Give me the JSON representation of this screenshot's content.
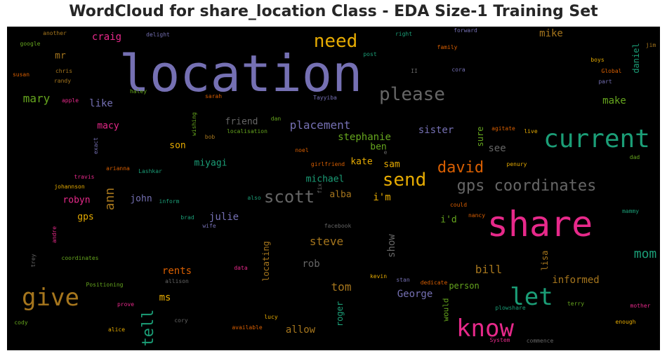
{
  "title": "WordCloud for share_location Class - EDA Size-1 Training Set",
  "palette": {
    "background": "#000000",
    "purple": "#7570b3",
    "green": "#1b9e77",
    "pink": "#e7298a",
    "orange": "#d95f02",
    "gold": "#e6ab02",
    "brown": "#a6761d",
    "lime": "#66a61e",
    "grey": "#666666"
  },
  "words": [
    {
      "text": "location",
      "color": "#7570b3"
    },
    {
      "text": "share",
      "color": "#e7298a"
    },
    {
      "text": "current",
      "color": "#1b9e77"
    },
    {
      "text": "please",
      "color": "#666666"
    },
    {
      "text": "need",
      "color": "#e6ab02"
    },
    {
      "text": "give",
      "color": "#a6761d"
    },
    {
      "text": "know",
      "color": "#e7298a"
    },
    {
      "text": "let",
      "color": "#1b9e77"
    },
    {
      "text": "send",
      "color": "#e6ab02"
    },
    {
      "text": "gps coordinates",
      "color": "#666666"
    },
    {
      "text": "scott",
      "color": "#666666"
    },
    {
      "text": "david",
      "color": "#d95f02"
    },
    {
      "text": "tell",
      "color": "#1b9e77"
    },
    {
      "text": "ann",
      "color": "#a6761d"
    },
    {
      "text": "mom",
      "color": "#1b9e77"
    },
    {
      "text": "placement",
      "color": "#7570b3"
    },
    {
      "text": "mary",
      "color": "#66a61e"
    },
    {
      "text": "craig",
      "color": "#e7298a"
    },
    {
      "text": "mike",
      "color": "#a6761d"
    },
    {
      "text": "like",
      "color": "#7570b3"
    },
    {
      "text": "make",
      "color": "#66a61e"
    },
    {
      "text": "sister",
      "color": "#7570b3"
    },
    {
      "text": "stephanie",
      "color": "#66a61e"
    },
    {
      "text": "see",
      "color": "#666666"
    },
    {
      "text": "show",
      "color": "#666666"
    },
    {
      "text": "steve",
      "color": "#a6761d"
    },
    {
      "text": "bill",
      "color": "#a6761d"
    },
    {
      "text": "tom",
      "color": "#a6761d"
    },
    {
      "text": "person",
      "color": "#66a61e"
    },
    {
      "text": "informed",
      "color": "#a6761d"
    },
    {
      "text": "George",
      "color": "#7570b3"
    },
    {
      "text": "allow",
      "color": "#a6761d"
    },
    {
      "text": "rents",
      "color": "#d95f02"
    },
    {
      "text": "ms",
      "color": "#e6ab02"
    },
    {
      "text": "rob",
      "color": "#666666"
    },
    {
      "text": "julie",
      "color": "#7570b3"
    },
    {
      "text": "john",
      "color": "#7570b3"
    },
    {
      "text": "robyn",
      "color": "#e7298a"
    },
    {
      "text": "gps",
      "color": "#e6ab02"
    },
    {
      "text": "i'm",
      "color": "#e6ab02"
    },
    {
      "text": "i'd",
      "color": "#66a61e"
    },
    {
      "text": "sam",
      "color": "#e6ab02"
    },
    {
      "text": "kate",
      "color": "#e6ab02"
    },
    {
      "text": "ben",
      "color": "#66a61e"
    },
    {
      "text": "alba",
      "color": "#a6761d"
    },
    {
      "text": "michael",
      "color": "#1b9e77"
    },
    {
      "text": "miyagi",
      "color": "#1b9e77"
    },
    {
      "text": "son",
      "color": "#e6ab02"
    },
    {
      "text": "macy",
      "color": "#e7298a"
    },
    {
      "text": "friend",
      "color": "#666666"
    },
    {
      "text": "mr",
      "color": "#a6761d"
    },
    {
      "text": "sure",
      "color": "#66a61e"
    },
    {
      "text": "lisa",
      "color": "#a6761d"
    },
    {
      "text": "daniel",
      "color": "#1b9e77"
    },
    {
      "text": "locating",
      "color": "#a6761d"
    },
    {
      "text": "roger",
      "color": "#1b9e77"
    },
    {
      "text": "would",
      "color": "#66a61e"
    },
    {
      "text": "another",
      "color": "#a6761d"
    },
    {
      "text": "google",
      "color": "#66a61e"
    },
    {
      "text": "delight",
      "color": "#7570b3"
    },
    {
      "text": "right",
      "color": "#1b9e77"
    },
    {
      "text": "forward",
      "color": "#7570b3"
    },
    {
      "text": "family",
      "color": "#d95f02"
    },
    {
      "text": "jim",
      "color": "#a6761d"
    },
    {
      "text": "post",
      "color": "#1b9e77"
    },
    {
      "text": "boys",
      "color": "#e6ab02"
    },
    {
      "text": "Global",
      "color": "#d95f02"
    },
    {
      "text": "part",
      "color": "#7570b3"
    },
    {
      "text": "II",
      "color": "#666666"
    },
    {
      "text": "cora",
      "color": "#7570b3"
    },
    {
      "text": "chris",
      "color": "#a6761d"
    },
    {
      "text": "susan",
      "color": "#d95f02"
    },
    {
      "text": "randy",
      "color": "#a6761d"
    },
    {
      "text": "haley",
      "color": "#66a61e"
    },
    {
      "text": "sarah",
      "color": "#d95f02"
    },
    {
      "text": "Tayyiba",
      "color": "#7570b3"
    },
    {
      "text": "apple",
      "color": "#e7298a"
    },
    {
      "text": "wishing",
      "color": "#66a61e"
    },
    {
      "text": "dan",
      "color": "#66a61e"
    },
    {
      "text": "localisation",
      "color": "#66a61e"
    },
    {
      "text": "bob",
      "color": "#a6761d"
    },
    {
      "text": "agitate",
      "color": "#d95f02"
    },
    {
      "text": "live",
      "color": "#e6ab02"
    },
    {
      "text": "exact",
      "color": "#7570b3"
    },
    {
      "text": "noel",
      "color": "#d95f02"
    },
    {
      "text": "e",
      "color": "#666666"
    },
    {
      "text": "girlfriend",
      "color": "#d95f02"
    },
    {
      "text": "dad",
      "color": "#66a61e"
    },
    {
      "text": "travis",
      "color": "#e7298a"
    },
    {
      "text": "arianna",
      "color": "#d95f02"
    },
    {
      "text": "Lashkar",
      "color": "#1b9e77"
    },
    {
      "text": "penury",
      "color": "#e6ab02"
    },
    {
      "text": "johannson",
      "color": "#e6ab02"
    },
    {
      "text": "inform",
      "color": "#1b9e77"
    },
    {
      "text": "also",
      "color": "#1b9e77"
    },
    {
      "text": "fix",
      "color": "#666666"
    },
    {
      "text": "could",
      "color": "#d95f02"
    },
    {
      "text": "nancy",
      "color": "#d95f02"
    },
    {
      "text": "brad",
      "color": "#1b9e77"
    },
    {
      "text": "wife",
      "color": "#7570b3"
    },
    {
      "text": "facebook",
      "color": "#666666"
    },
    {
      "text": "mammy",
      "color": "#1b9e77"
    },
    {
      "text": "andre",
      "color": "#e7298a"
    },
    {
      "text": "trey",
      "color": "#666666"
    },
    {
      "text": "coordinates",
      "color": "#66a61e"
    },
    {
      "text": "data",
      "color": "#e7298a"
    },
    {
      "text": "allison",
      "color": "#666666"
    },
    {
      "text": "kevin",
      "color": "#e6ab02"
    },
    {
      "text": "stan",
      "color": "#7570b3"
    },
    {
      "text": "dedicate",
      "color": "#d95f02"
    },
    {
      "text": "Positioning",
      "color": "#66a61e"
    },
    {
      "text": "prove",
      "color": "#e7298a"
    },
    {
      "text": "terry",
      "color": "#66a61e"
    },
    {
      "text": "mother",
      "color": "#e7298a"
    },
    {
      "text": "plowshare",
      "color": "#1b9e77"
    },
    {
      "text": "lucy",
      "color": "#e6ab02"
    },
    {
      "text": "cody",
      "color": "#66a61e"
    },
    {
      "text": "alice",
      "color": "#e6ab02"
    },
    {
      "text": "cory",
      "color": "#666666"
    },
    {
      "text": "available",
      "color": "#d95f02"
    },
    {
      "text": "enough",
      "color": "#e6ab02"
    },
    {
      "text": "System",
      "color": "#e7298a"
    },
    {
      "text": "commence",
      "color": "#666666"
    }
  ]
}
